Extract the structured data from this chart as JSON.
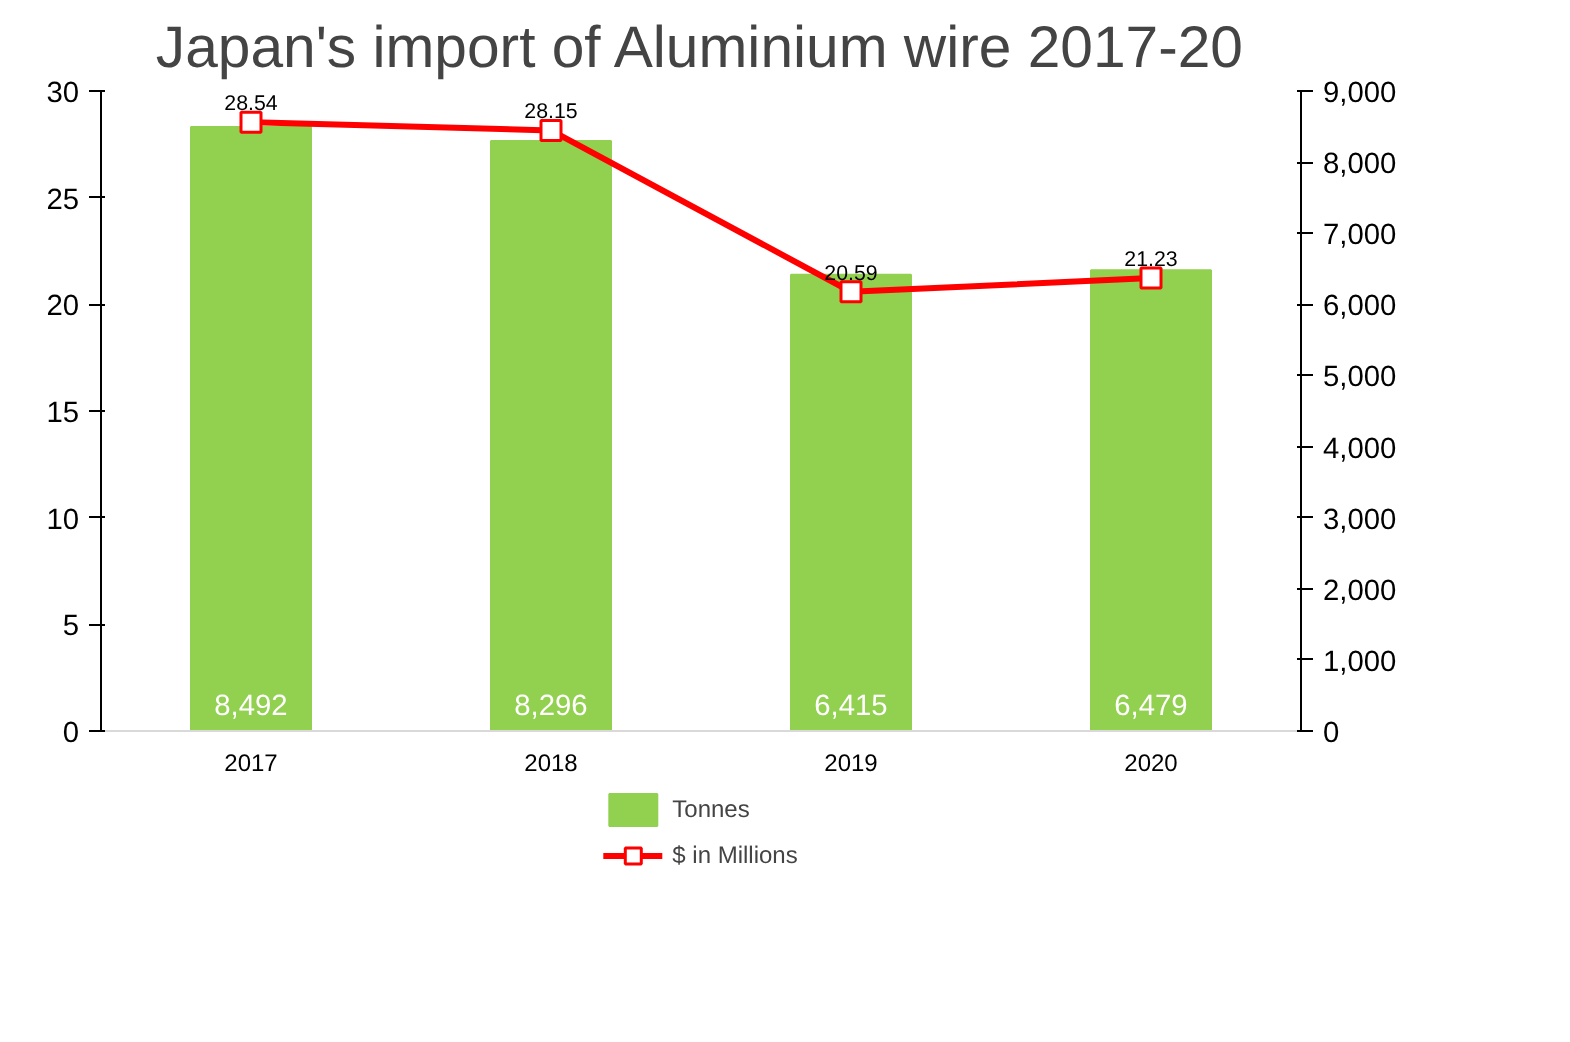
{
  "chart_data": {
    "type": "bar",
    "title": "Japan's import of Aluminium wire 2017-20",
    "categories": [
      "2017",
      "2018",
      "2019",
      "2020"
    ],
    "series": [
      {
        "name": "Tonnes",
        "axis": "y2",
        "color": "#92d050",
        "values": [
          8492,
          8296,
          6415,
          6479
        ],
        "value_labels": [
          "8,492",
          "8,296",
          "6,415",
          "6,479"
        ]
      },
      {
        "name": "$ in Millions",
        "type": "line",
        "axis": "y",
        "color": "#ff0000",
        "marker": "square",
        "values": [
          28.54,
          28.15,
          20.59,
          21.23
        ]
      }
    ],
    "ylim": [
      0,
      30
    ],
    "yticks": [
      0,
      5,
      10,
      15,
      20,
      25,
      30
    ],
    "y2lim": [
      0,
      9000
    ],
    "y2ticks": [
      0,
      {
        "value": 1000,
        "label": "1,000"
      },
      {
        "value": 2000,
        "label": "2,000"
      },
      {
        "value": 3000,
        "label": "3,000"
      },
      {
        "value": 4000,
        "label": "4,000"
      },
      {
        "value": 5000,
        "label": "5,000"
      },
      {
        "value": 6000,
        "label": "6,000"
      },
      {
        "value": 7000,
        "label": "7,000"
      },
      {
        "value": 8000,
        "label": "8,000"
      },
      {
        "value": 9000,
        "label": "9,000"
      }
    ],
    "data_labels": true,
    "legend": "bottom",
    "grid": false
  }
}
